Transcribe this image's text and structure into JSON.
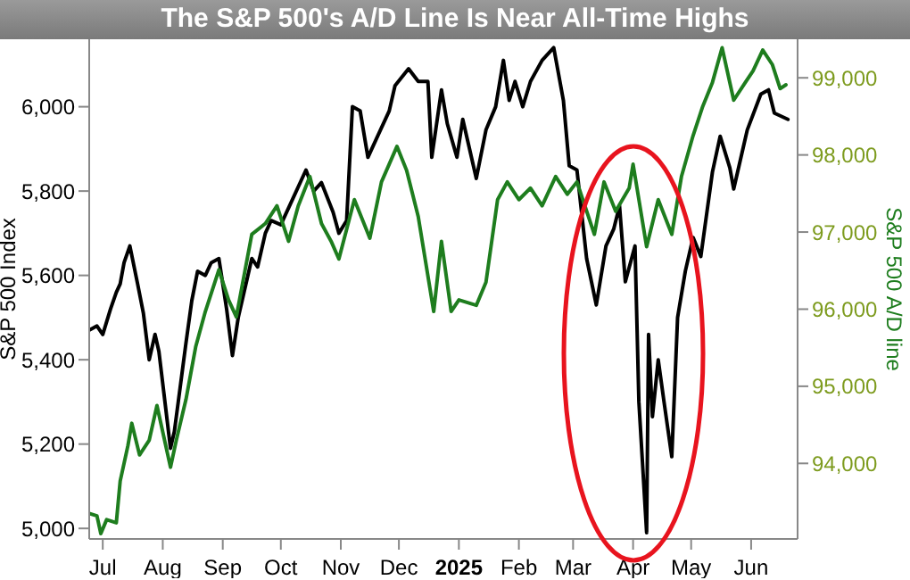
{
  "chart_data": {
    "type": "line",
    "title": "The S&P 500's A/D Line Is Near All-Time Highs",
    "ylabel": "S&P 500 Index",
    "y2label": "S&P 500 A/D line",
    "xlim": [
      "2024-06-24",
      "2025-06-25"
    ],
    "xticks": [
      {
        "value": "2024-07-01",
        "label": "Jul"
      },
      {
        "value": "2024-08-01",
        "label": "Aug"
      },
      {
        "value": "2024-09-01",
        "label": "Sep"
      },
      {
        "value": "2024-10-01",
        "label": "Oct"
      },
      {
        "value": "2024-11-01",
        "label": "Nov"
      },
      {
        "value": "2024-12-01",
        "label": "Dec"
      },
      {
        "value": "2025-01-01",
        "label": "2025"
      },
      {
        "value": "2025-02-01",
        "label": "Feb"
      },
      {
        "value": "2025-03-01",
        "label": "Mar"
      },
      {
        "value": "2025-04-01",
        "label": "Apr"
      },
      {
        "value": "2025-05-01",
        "label": "May"
      },
      {
        "value": "2025-06-01",
        "label": "Jun"
      }
    ],
    "ylim": [
      4975,
      6160
    ],
    "yticks": [
      {
        "value": 5000,
        "label": "5,000"
      },
      {
        "value": 5200,
        "label": "5,200"
      },
      {
        "value": 5400,
        "label": "5,400"
      },
      {
        "value": 5600,
        "label": "5,600"
      },
      {
        "value": 5800,
        "label": "5,800"
      },
      {
        "value": 6000,
        "label": "6,000"
      }
    ],
    "y2lim": [
      93020,
      99500
    ],
    "y2ticks": [
      {
        "value": 94000,
        "label": "94,000"
      },
      {
        "value": 95000,
        "label": "95,000"
      },
      {
        "value": 96000,
        "label": "96,000"
      },
      {
        "value": 97000,
        "label": "97,000"
      },
      {
        "value": 98000,
        "label": "98,000"
      },
      {
        "value": 99000,
        "label": "99,000"
      }
    ],
    "marker": "none",
    "line_style": "solid",
    "series": [
      {
        "color": "#000000",
        "x": [
          "2024-06-24",
          "2024-06-28",
          "2024-07-01",
          "2024-07-05",
          "2024-07-08",
          "2024-07-10",
          "2024-07-12",
          "2024-07-15",
          "2024-07-19",
          "2024-07-22",
          "2024-07-25",
          "2024-07-28",
          "2024-07-30",
          "2024-08-05",
          "2024-08-07",
          "2024-08-09",
          "2024-08-13",
          "2024-08-16",
          "2024-08-19",
          "2024-08-23",
          "2024-08-26",
          "2024-08-30",
          "2024-09-03",
          "2024-09-06",
          "2024-09-09",
          "2024-09-12",
          "2024-09-16",
          "2024-09-19",
          "2024-09-23",
          "2024-09-26",
          "2024-10-01",
          "2024-10-07",
          "2024-10-14",
          "2024-10-18",
          "2024-10-22",
          "2024-10-28",
          "2024-10-31",
          "2024-11-04",
          "2024-11-07",
          "2024-11-11",
          "2024-11-15",
          "2024-11-20",
          "2024-11-26",
          "2024-11-29",
          "2024-12-06",
          "2024-12-11",
          "2024-12-16",
          "2024-12-18",
          "2024-12-23",
          "2024-12-26",
          "2024-12-31",
          "2025-01-03",
          "2025-01-10",
          "2025-01-15",
          "2025-01-20",
          "2025-01-24",
          "2025-01-27",
          "2025-01-30",
          "2025-02-03",
          "2025-02-07",
          "2025-02-13",
          "2025-02-19",
          "2025-02-24",
          "2025-02-27",
          "2025-03-03",
          "2025-03-08",
          "2025-03-13",
          "2025-03-18",
          "2025-03-22",
          "2025-03-25",
          "2025-03-28",
          "2025-04-02",
          "2025-04-04",
          "2025-04-08",
          "2025-04-09",
          "2025-04-11",
          "2025-04-14",
          "2025-04-17",
          "2025-04-21",
          "2025-04-24",
          "2025-04-28",
          "2025-05-02",
          "2025-05-06",
          "2025-05-12",
          "2025-05-16",
          "2025-05-21",
          "2025-05-23",
          "2025-05-28",
          "2025-05-30",
          "2025-06-06",
          "2025-06-10",
          "2025-06-13",
          "2025-06-20"
        ],
        "values": [
          5470,
          5480,
          5460,
          5520,
          5560,
          5580,
          5630,
          5670,
          5580,
          5510,
          5400,
          5460,
          5420,
          5190,
          5230,
          5300,
          5440,
          5540,
          5610,
          5600,
          5630,
          5640,
          5520,
          5410,
          5500,
          5560,
          5640,
          5620,
          5700,
          5730,
          5720,
          5780,
          5850,
          5800,
          5820,
          5750,
          5700,
          5730,
          6000,
          5990,
          5880,
          5930,
          5990,
          6050,
          6090,
          6060,
          6060,
          5880,
          6040,
          5960,
          5880,
          5970,
          5830,
          5945,
          6000,
          6110,
          6015,
          6060,
          6000,
          6060,
          6110,
          6140,
          6015,
          5860,
          5850,
          5640,
          5530,
          5670,
          5710,
          5765,
          5585,
          5670,
          5300,
          4990,
          5460,
          5265,
          5400,
          5300,
          5170,
          5500,
          5610,
          5690,
          5645,
          5845,
          5930,
          5855,
          5805,
          5905,
          5945,
          6030,
          6040,
          5985,
          5970
        ]
      },
      {
        "color": "#1e7d1e",
        "axis": "y2",
        "x": [
          "2024-06-24",
          "2024-06-28",
          "2024-06-30",
          "2024-07-03",
          "2024-07-08",
          "2024-07-10",
          "2024-07-14",
          "2024-07-16",
          "2024-07-20",
          "2024-07-25",
          "2024-07-29",
          "2024-08-05",
          "2024-08-08",
          "2024-08-13",
          "2024-08-18",
          "2024-08-23",
          "2024-08-30",
          "2024-09-04",
          "2024-09-08",
          "2024-09-16",
          "2024-09-23",
          "2024-09-29",
          "2024-10-05",
          "2024-10-10",
          "2024-10-16",
          "2024-10-22",
          "2024-10-27",
          "2024-10-31",
          "2024-11-08",
          "2024-11-16",
          "2024-11-22",
          "2024-11-30",
          "2024-12-05",
          "2024-12-11",
          "2024-12-19",
          "2024-12-23",
          "2024-12-28",
          "2025-01-01",
          "2025-01-10",
          "2025-01-15",
          "2025-01-21",
          "2025-01-26",
          "2025-02-01",
          "2025-02-07",
          "2025-02-13",
          "2025-02-20",
          "2025-02-26",
          "2025-03-03",
          "2025-03-12",
          "2025-03-17",
          "2025-03-23",
          "2025-03-30",
          "2025-04-01",
          "2025-04-08",
          "2025-04-14",
          "2025-04-21",
          "2025-04-26",
          "2025-05-02",
          "2025-05-07",
          "2025-05-12",
          "2025-05-17",
          "2025-05-23",
          "2025-05-29",
          "2025-06-02",
          "2025-06-07",
          "2025-06-12",
          "2025-06-16",
          "2025-06-19"
        ],
        "values": [
          93350,
          93320,
          93090,
          93270,
          93230,
          93770,
          94230,
          94520,
          94110,
          94300,
          94750,
          93950,
          94300,
          94830,
          95510,
          95970,
          96510,
          96120,
          95900,
          96970,
          97110,
          97340,
          96880,
          97340,
          97720,
          97110,
          96880,
          96650,
          97420,
          96920,
          97650,
          98110,
          97800,
          97200,
          95970,
          96880,
          95970,
          96120,
          96050,
          96350,
          97420,
          97650,
          97420,
          97570,
          97340,
          97720,
          97490,
          97650,
          96970,
          97650,
          97270,
          97570,
          97880,
          96810,
          97420,
          96970,
          97720,
          98250,
          98630,
          98940,
          99390,
          98710,
          98940,
          99090,
          99360,
          99170,
          98860,
          98910
        ]
      }
    ]
  }
}
